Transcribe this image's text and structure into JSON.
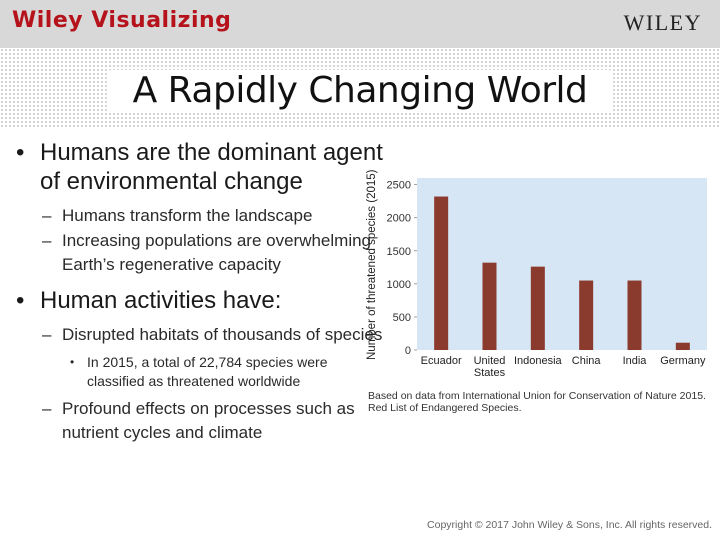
{
  "header": {
    "brand_left": "Wiley Visualizing",
    "brand_right": "WILEY"
  },
  "slide": {
    "title": "A Rapidly Changing World",
    "bullets": {
      "b1": "Humans are the dominant agent of environmental change",
      "b1_sub1": "Humans transform the landscape",
      "b1_sub2": "Increasing populations are overwhelming Earth’s regenerative capacity",
      "b2": "Human activities have:",
      "b2_sub1": "Disrupted habitats of thousands of species",
      "b2_sub1_sub1": "In 2015, a total of 22,784 species were classified as threatened worldwide",
      "b2_sub2": "Profound effects on processes such as nutrient cycles and climate"
    },
    "source_note": "Based on data from International Union for Conservation of Nature 2015. Red List of Endangered Species.",
    "copyright": "Copyright © 2017 John Wiley & Sons, Inc. All rights reserved."
  },
  "chart_data": {
    "type": "bar",
    "title": "",
    "xlabel": "",
    "ylabel": "Number of threatened species (2015)",
    "categories": [
      "Ecuador",
      "United States",
      "Indonesia",
      "China",
      "India",
      "Germany"
    ],
    "category_lines": [
      [
        "Ecuador"
      ],
      [
        "United",
        "States"
      ],
      [
        "Indonesia"
      ],
      [
        "China"
      ],
      [
        "India"
      ],
      [
        "Germany"
      ]
    ],
    "values": [
      2320,
      1320,
      1260,
      1050,
      1050,
      110
    ],
    "yticks": [
      0,
      500,
      1000,
      1500,
      2000,
      2500
    ],
    "ylim": [
      0,
      2600
    ],
    "grid": false,
    "colors": {
      "bar": "#8b3a2e",
      "plot_bg": "#d6e6f4"
    }
  }
}
